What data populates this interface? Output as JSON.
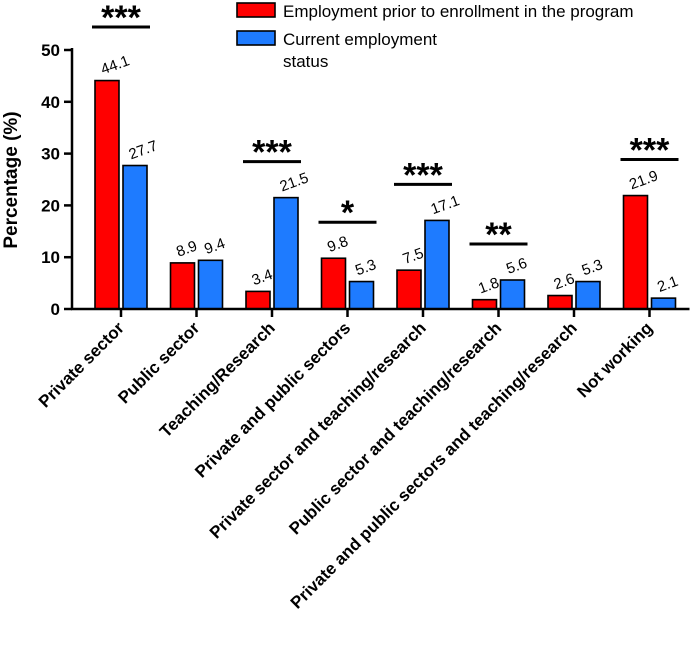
{
  "chart_data": {
    "type": "bar",
    "title": "",
    "xlabel": "",
    "ylabel": "Percentage (%)",
    "ylim": [
      0,
      50
    ],
    "yticks": [
      0,
      10,
      20,
      30,
      40,
      50
    ],
    "categories": [
      "Private sector",
      "Public sector",
      "Teaching/Research",
      "Private and public sectors",
      "Private sector and teaching/research",
      "Public sector and teaching/research",
      "Private and public sectors and teaching/research",
      "Not working"
    ],
    "series": [
      {
        "name": "Employment prior to enrollment in the program",
        "color": "#ff0000",
        "values": [
          44.1,
          8.9,
          3.4,
          9.8,
          7.5,
          1.8,
          2.6,
          21.9
        ],
        "labels": [
          "44.1",
          "8.9",
          "3.4",
          "9.8",
          "7.5",
          "1.8",
          "2.6",
          "21.9"
        ]
      },
      {
        "name": "Current employment status",
        "color": "#1e7bff",
        "values": [
          27.7,
          9.4,
          21.5,
          5.3,
          17.1,
          5.6,
          5.3,
          2.1
        ],
        "labels": [
          "27.7",
          "9.4",
          "21.5",
          "5.3",
          "17.1",
          "5.6",
          "5.3",
          "2.1"
        ]
      }
    ],
    "significance": [
      "***",
      "",
      "***",
      "*",
      "***",
      "**",
      "",
      "***"
    ],
    "legend": {
      "position": "top-right",
      "entries": [
        [
          "Employment prior to enrollment in the program"
        ],
        [
          "Current employment",
          "status"
        ]
      ]
    }
  }
}
